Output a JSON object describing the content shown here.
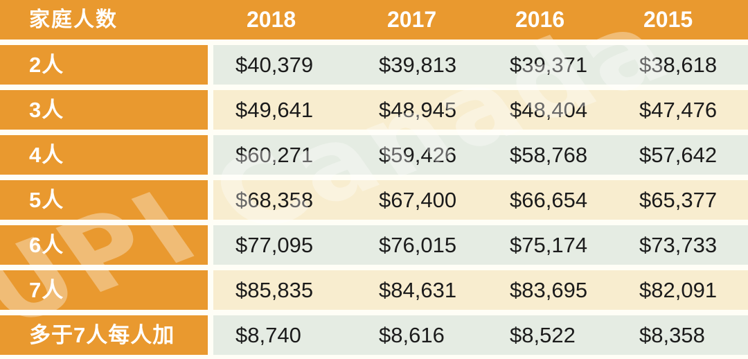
{
  "watermark": {
    "text": "UPI Canada"
  },
  "colors": {
    "header_orange": "#E9992F",
    "band_green": "#E5ECE3",
    "band_cream": "#F8EDCF",
    "gap_white": "#FFFEF6",
    "value_text": "#1B1B1B",
    "header_text": "#FFFFFF"
  },
  "table": {
    "header": {
      "label": "家庭人数",
      "years": [
        "2018",
        "2017",
        "2016",
        "2015"
      ]
    },
    "rows": [
      {
        "label": "2人",
        "values": [
          "$40,379",
          "$39,813",
          "$39,371",
          "$38,618"
        ]
      },
      {
        "label": "3人",
        "values": [
          "$49,641",
          "$48,945",
          "$48,404",
          "$47,476"
        ]
      },
      {
        "label": "4人",
        "values": [
          "$60,271",
          "$59,426",
          "$58,768",
          "$57,642"
        ]
      },
      {
        "label": "5人",
        "values": [
          "$68,358",
          "$67,400",
          "$66,654",
          "$65,377"
        ]
      },
      {
        "label": "6人",
        "values": [
          "$77,095",
          "$76,015",
          "$75,174",
          "$73,733"
        ]
      },
      {
        "label": "7人",
        "values": [
          "$85,835",
          "$84,631",
          "$83,695",
          "$82,091"
        ]
      },
      {
        "label": "多于7人每人加",
        "values": [
          "$8,740",
          "$8,616",
          "$8,522",
          "$8,358"
        ]
      }
    ]
  },
  "chart_data": {
    "type": "table",
    "title": "",
    "columns": [
      "家庭人数",
      "2018",
      "2017",
      "2016",
      "2015"
    ],
    "rows": [
      [
        "2人",
        "$40,379",
        "$39,813",
        "$39,371",
        "$38,618"
      ],
      [
        "3人",
        "$49,641",
        "$48,945",
        "$48,404",
        "$47,476"
      ],
      [
        "4人",
        "$60,271",
        "$59,426",
        "$58,768",
        "$57,642"
      ],
      [
        "5人",
        "$68,358",
        "$67,400",
        "$66,654",
        "$65,377"
      ],
      [
        "6人",
        "$77,095",
        "$76,015",
        "$75,174",
        "$73,733"
      ],
      [
        "7人",
        "$85,835",
        "$84,631",
        "$83,695",
        "$82,091"
      ],
      [
        "多于7人每人加",
        "$8,740",
        "$8,616",
        "$8,522",
        "$8,358"
      ]
    ],
    "layout_hints": {
      "header_background": "#E9992F",
      "row_band_colors_alternating": [
        "#E5ECE3",
        "#F8EDCF"
      ],
      "watermark": "UPI Canada",
      "grid": "white horizontal separators between rows"
    }
  }
}
